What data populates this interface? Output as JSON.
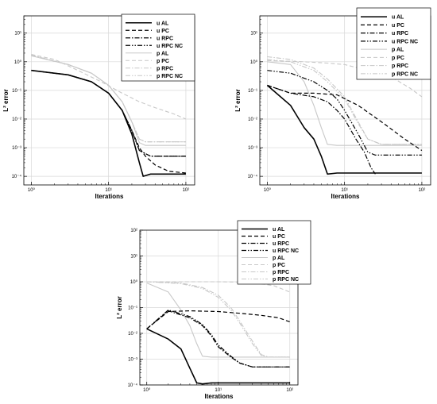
{
  "chart_data": [
    {
      "type": "line",
      "xlabel": "Iterations",
      "ylabel": "L² error",
      "x_scale": "log",
      "y_scale": "log",
      "xlim": [
        0.8,
        130
      ],
      "ylim": [
        5e-05,
        40
      ],
      "x_ticks": [
        "10⁰",
        "10¹",
        "10²"
      ],
      "y_ticks": [
        "10⁻⁴",
        "10⁻³",
        "10⁻²",
        "10⁻¹",
        "10⁰",
        "10¹"
      ],
      "grid": true,
      "legend_position": "top-right",
      "series": [
        {
          "name": "u AL",
          "x": [
            1,
            3,
            6,
            10,
            15,
            20,
            25,
            28,
            35,
            50,
            100
          ],
          "y": [
            0.5,
            0.35,
            0.2,
            0.08,
            0.02,
            0.003,
            0.0003,
            0.0001,
            0.00012,
            0.00012,
            0.00012
          ]
        },
        {
          "name": "u PC",
          "x": [
            1,
            3,
            6,
            10,
            15,
            20,
            25,
            30,
            40,
            60,
            100
          ],
          "y": [
            0.5,
            0.35,
            0.2,
            0.08,
            0.02,
            0.004,
            0.001,
            0.0005,
            0.00025,
            0.00015,
            0.00013
          ]
        },
        {
          "name": "u RPC",
          "x": [
            1,
            3,
            6,
            10,
            15,
            20,
            25,
            35,
            100
          ],
          "y": [
            0.5,
            0.35,
            0.2,
            0.08,
            0.02,
            0.004,
            0.0008,
            0.0005,
            0.0005
          ]
        },
        {
          "name": "u RPC NC",
          "x": [
            1,
            3,
            6,
            10,
            15,
            20,
            25,
            35,
            100
          ],
          "y": [
            0.5,
            0.35,
            0.2,
            0.08,
            0.02,
            0.004,
            0.0008,
            0.0005,
            0.0005
          ]
        },
        {
          "name": "p AL",
          "x": [
            1,
            3,
            6,
            10,
            15,
            20,
            25,
            30,
            100
          ],
          "y": [
            1.6,
            0.8,
            0.4,
            0.15,
            0.04,
            0.008,
            0.0015,
            0.0012,
            0.0012
          ]
        },
        {
          "name": "p PC",
          "x": [
            1,
            2,
            4,
            8,
            15,
            25,
            40,
            70,
            100
          ],
          "y": [
            1.8,
            1.2,
            0.5,
            0.2,
            0.08,
            0.04,
            0.025,
            0.015,
            0.01
          ]
        },
        {
          "name": "p RPC",
          "x": [
            1,
            3,
            6,
            10,
            15,
            20,
            25,
            30,
            100
          ],
          "y": [
            1.7,
            0.8,
            0.4,
            0.15,
            0.04,
            0.008,
            0.002,
            0.0016,
            0.0016
          ]
        },
        {
          "name": "p RPC NC",
          "x": [
            1,
            3,
            6,
            10,
            15,
            20,
            25,
            30,
            100
          ],
          "y": [
            1.7,
            0.8,
            0.4,
            0.15,
            0.04,
            0.008,
            0.002,
            0.0016,
            0.0016
          ]
        }
      ]
    },
    {
      "type": "line",
      "xlabel": "Iterations",
      "ylabel": "L² error",
      "x_scale": "log",
      "y_scale": "log",
      "xlim": [
        0.8,
        130
      ],
      "ylim": [
        5e-05,
        40
      ],
      "x_ticks": [
        "10⁰",
        "10¹",
        "10²"
      ],
      "y_ticks": [
        "10⁻⁴",
        "10⁻³",
        "10⁻²",
        "10⁻¹",
        "10⁰",
        "10¹"
      ],
      "grid": true,
      "legend_position": "top-right",
      "series": [
        {
          "name": "u AL",
          "x": [
            1,
            2,
            3,
            4,
            5,
            6,
            8,
            10,
            100
          ],
          "y": [
            0.15,
            0.03,
            0.005,
            0.002,
            0.0005,
            0.00012,
            0.00013,
            0.00013,
            0.00013
          ]
        },
        {
          "name": "u PC",
          "x": [
            1,
            2,
            4,
            8,
            15,
            30,
            60,
            100
          ],
          "y": [
            0.15,
            0.08,
            0.08,
            0.07,
            0.03,
            0.008,
            0.002,
            0.0008
          ]
        },
        {
          "name": "u RPC",
          "x": [
            1,
            2,
            4,
            6,
            8,
            10,
            14,
            18,
            22,
            25
          ],
          "y": [
            0.15,
            0.08,
            0.06,
            0.04,
            0.02,
            0.01,
            0.002,
            0.0007,
            0.0002,
            0.00012
          ]
        },
        {
          "name": "u RPC NC",
          "x": [
            1,
            2,
            4,
            6,
            8,
            10,
            15,
            20,
            25,
            100
          ],
          "y": [
            0.5,
            0.4,
            0.2,
            0.1,
            0.05,
            0.02,
            0.003,
            0.0007,
            0.00055,
            0.00055
          ]
        },
        {
          "name": "p AL",
          "x": [
            1,
            2,
            3,
            4,
            5,
            6,
            8,
            100
          ],
          "y": [
            1.0,
            0.8,
            0.2,
            0.03,
            0.005,
            0.0013,
            0.0012,
            0.0012
          ]
        },
        {
          "name": "p PC",
          "x": [
            1,
            3,
            6,
            10,
            20,
            40,
            70,
            100
          ],
          "y": [
            1.1,
            1.0,
            0.9,
            0.8,
            0.5,
            0.3,
            0.12,
            0.06
          ]
        },
        {
          "name": "p RPC",
          "x": [
            1,
            2,
            4,
            6,
            10,
            15,
            20,
            30,
            100
          ],
          "y": [
            1.5,
            1.2,
            0.6,
            0.25,
            0.06,
            0.008,
            0.002,
            0.0013,
            0.0013
          ]
        },
        {
          "name": "p RPC NC",
          "x": [
            1,
            2,
            4,
            6,
            10,
            15,
            20,
            30,
            100
          ],
          "y": [
            1.2,
            1.0,
            0.5,
            0.2,
            0.05,
            0.007,
            0.002,
            0.0013,
            0.0013
          ]
        }
      ]
    },
    {
      "type": "line",
      "xlabel": "Iterations",
      "ylabel": "L² error",
      "x_scale": "log",
      "y_scale": "log",
      "xlim": [
        0.8,
        130
      ],
      "ylim": [
        0.0001,
        100
      ],
      "x_ticks": [
        "10⁰",
        "10¹",
        "10²"
      ],
      "y_ticks": [
        "10⁻⁴",
        "10⁻³",
        "10⁻²",
        "10⁻¹",
        "10⁰",
        "10¹",
        "10²"
      ],
      "grid": true,
      "legend_position": "top-right",
      "series": [
        {
          "name": "u AL",
          "x": [
            1,
            2,
            3,
            4,
            5,
            6,
            8,
            10,
            100
          ],
          "y": [
            0.015,
            0.006,
            0.0025,
            0.00045,
            0.00012,
            0.00011,
            0.00012,
            0.00012,
            0.00012
          ]
        },
        {
          "name": "u PC",
          "x": [
            1,
            2,
            4,
            10,
            20,
            40,
            70,
            100
          ],
          "y": [
            0.015,
            0.07,
            0.075,
            0.07,
            0.06,
            0.05,
            0.04,
            0.028
          ]
        },
        {
          "name": "u RPC",
          "x": [
            1,
            2,
            4,
            6,
            8,
            10,
            15,
            20,
            30,
            50,
            100
          ],
          "y": [
            0.015,
            0.075,
            0.04,
            0.02,
            0.008,
            0.003,
            0.0012,
            0.0007,
            0.0005,
            0.0005,
            0.0005
          ]
        },
        {
          "name": "u RPC NC",
          "x": [
            1,
            2,
            4,
            6,
            8,
            10,
            15,
            20,
            30,
            50,
            100
          ],
          "y": [
            0.015,
            0.08,
            0.045,
            0.022,
            0.009,
            0.0035,
            0.0013,
            0.0007,
            0.0005,
            0.0005,
            0.0005
          ]
        },
        {
          "name": "p AL",
          "x": [
            1,
            2,
            3,
            4,
            5,
            6,
            8,
            100
          ],
          "y": [
            0.9,
            0.4,
            0.08,
            0.02,
            0.004,
            0.0013,
            0.0012,
            0.0012
          ]
        },
        {
          "name": "p PC",
          "x": [
            1,
            5,
            10,
            30,
            60,
            100
          ],
          "y": [
            1.0,
            1.0,
            1.0,
            0.95,
            0.7,
            0.4
          ]
        },
        {
          "name": "p RPC",
          "x": [
            1,
            3,
            6,
            10,
            15,
            20,
            30,
            40,
            50,
            100
          ],
          "y": [
            1.0,
            0.9,
            0.6,
            0.3,
            0.1,
            0.03,
            0.005,
            0.0015,
            0.0012,
            0.0012
          ]
        },
        {
          "name": "p RPC NC",
          "x": [
            1,
            3,
            6,
            10,
            15,
            20,
            30,
            40,
            50,
            100
          ],
          "y": [
            1.0,
            0.85,
            0.55,
            0.25,
            0.08,
            0.025,
            0.004,
            0.0014,
            0.0012,
            0.0012
          ]
        }
      ]
    }
  ]
}
